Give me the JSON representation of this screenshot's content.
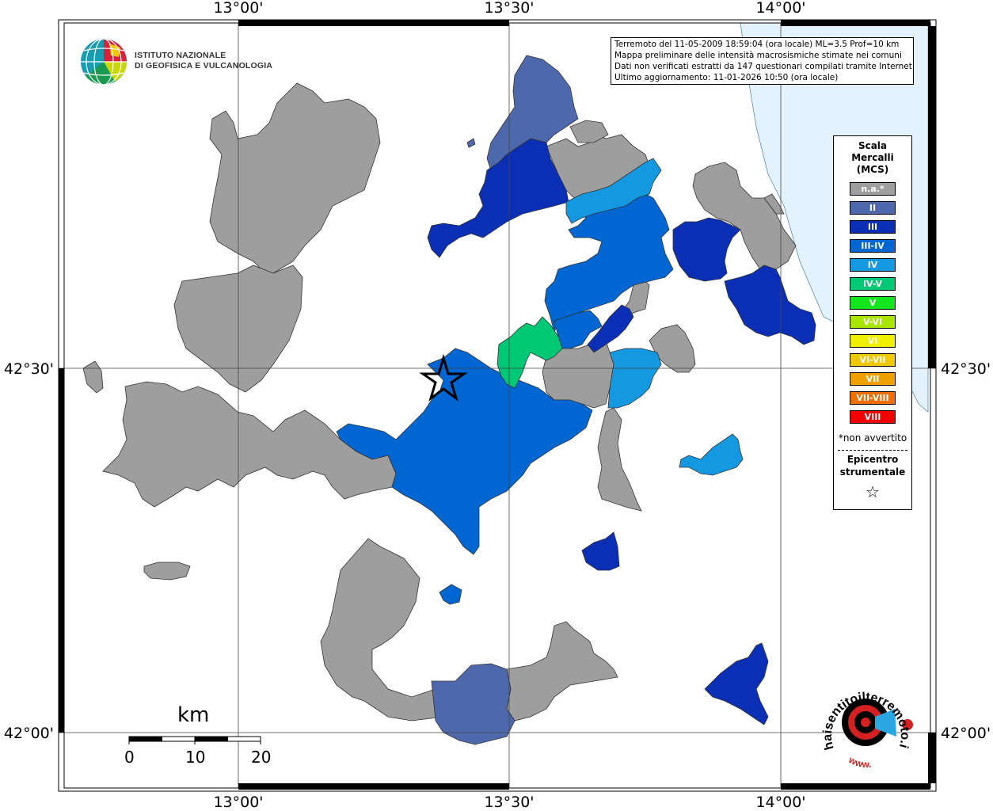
{
  "map": {
    "lon_labels": [
      "13°00'",
      "13°30'",
      "14°00'"
    ],
    "lat_labels": [
      "42°30'",
      "42°00'"
    ],
    "colors": {
      "na": "#9e9e9e",
      "II": "#4e68ac",
      "III": "#0a2fb4",
      "III-IV": "#0066d2",
      "IV": "#1499e0",
      "IV-V": "#00c875",
      "sea": "#e3f2fd"
    }
  },
  "info": {
    "line1": "Terremoto del 11-05-2009 18:59:04 (ora locale) ML=3.5 Prof=10 km",
    "line2": "Mappa preliminare delle intensità macrosismiche stimate nei comuni",
    "line3": "Dati non verificati estratti da 147 questionari compilati tramite Internet.",
    "line4": "Ultimo aggiornamento: 11-01-2026 10:50 (ora locale)"
  },
  "ingv": {
    "line1": "ISTITUTO NAZIONALE",
    "line2": "DI GEOFISICA E VULCANOLOGIA"
  },
  "legend": {
    "title1": "Scala",
    "title2": "Mercalli",
    "title3": "(MCS)",
    "items": [
      {
        "label": "n.a.*",
        "color": "#9e9e9e"
      },
      {
        "label": "II",
        "color": "#4e68ac"
      },
      {
        "label": "III",
        "color": "#0a2fb4"
      },
      {
        "label": "III-IV",
        "color": "#0066d2"
      },
      {
        "label": "IV",
        "color": "#1499e0"
      },
      {
        "label": "IV-V",
        "color": "#00c875"
      },
      {
        "label": "V",
        "color": "#14e61e"
      },
      {
        "label": "V-VI",
        "color": "#a8e600"
      },
      {
        "label": "VI",
        "color": "#f0f000"
      },
      {
        "label": "VI-VII",
        "color": "#f0c800"
      },
      {
        "label": "VII",
        "color": "#f0a000"
      },
      {
        "label": "VII-VIII",
        "color": "#f06e00"
      },
      {
        "label": "VIII",
        "color": "#f00000"
      }
    ],
    "note": "*non avvertito",
    "epi1": "Epicentro",
    "epi2": "strumentale",
    "star": "☆"
  },
  "scale": {
    "unit": "km",
    "ticks": [
      "0",
      "10",
      "20"
    ]
  },
  "haisentito": {
    "text": "haisentitoilterremoto.it",
    "prefix": "www."
  }
}
